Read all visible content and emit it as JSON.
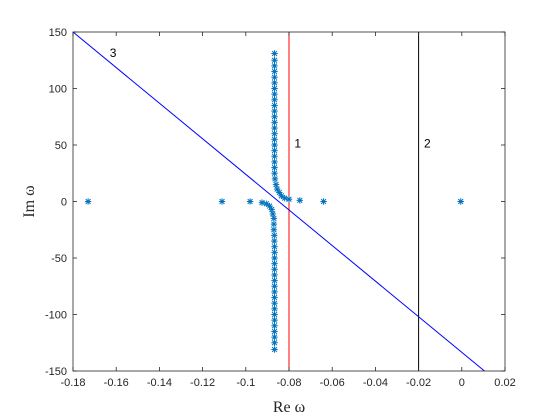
{
  "chart_data": {
    "type": "scatter",
    "title": "",
    "xlabel": "Re ω",
    "ylabel": "Im ω",
    "xlim": [
      -0.18,
      0.02
    ],
    "ylim": [
      -150,
      150
    ],
    "grid": false,
    "x_ticks": [
      -0.18,
      -0.16,
      -0.14,
      -0.12,
      -0.1,
      -0.08,
      -0.06,
      -0.04,
      -0.02,
      0,
      0.02
    ],
    "x_tick_labels": [
      "-0.18",
      "-0.16",
      "-0.14",
      "-0.12",
      "-0.1",
      "-0.08",
      "-0.06",
      "-0.04",
      "-0.02",
      "0",
      "0.02"
    ],
    "y_ticks": [
      -150,
      -100,
      -50,
      0,
      50,
      100,
      150
    ],
    "y_tick_labels": [
      "-150",
      "-100",
      "-50",
      "0",
      "50",
      "100",
      "150"
    ],
    "marker_color": "#0072BD",
    "points": [
      [
        -0.173,
        0
      ],
      [
        -0.111,
        0
      ],
      [
        -0.098,
        0
      ],
      [
        -0.064,
        0
      ],
      [
        -0.075,
        1
      ],
      [
        -0.0005,
        0
      ],
      [
        -0.0925,
        -1
      ],
      [
        -0.0905,
        -2
      ],
      [
        -0.089,
        -4
      ],
      [
        -0.088,
        -7
      ],
      [
        -0.0875,
        -11
      ],
      [
        -0.087,
        -15
      ],
      [
        -0.087,
        -20
      ],
      [
        -0.087,
        -25
      ],
      [
        -0.0868,
        -30
      ],
      [
        -0.0868,
        -35
      ],
      [
        -0.0867,
        -40
      ],
      [
        -0.0867,
        -45
      ],
      [
        -0.0867,
        -50
      ],
      [
        -0.0867,
        -55
      ],
      [
        -0.0867,
        -60
      ],
      [
        -0.0867,
        -65
      ],
      [
        -0.0867,
        -70
      ],
      [
        -0.0867,
        -75
      ],
      [
        -0.0867,
        -80
      ],
      [
        -0.0867,
        -85
      ],
      [
        -0.0867,
        -90
      ],
      [
        -0.0867,
        -95
      ],
      [
        -0.0867,
        -100
      ],
      [
        -0.0867,
        -105
      ],
      [
        -0.0867,
        -110
      ],
      [
        -0.0867,
        -115
      ],
      [
        -0.0867,
        -120
      ],
      [
        -0.0867,
        -125
      ],
      [
        -0.0867,
        -131
      ],
      [
        -0.08,
        2
      ],
      [
        -0.082,
        3
      ],
      [
        -0.0835,
        5
      ],
      [
        -0.0845,
        8
      ],
      [
        -0.0855,
        11
      ],
      [
        -0.086,
        15
      ],
      [
        -0.0865,
        20
      ],
      [
        -0.0867,
        25
      ],
      [
        -0.0867,
        30
      ],
      [
        -0.0867,
        35
      ],
      [
        -0.0867,
        40
      ],
      [
        -0.0867,
        45
      ],
      [
        -0.0867,
        50
      ],
      [
        -0.0867,
        55
      ],
      [
        -0.0867,
        60
      ],
      [
        -0.0867,
        65
      ],
      [
        -0.0867,
        70
      ],
      [
        -0.0867,
        75
      ],
      [
        -0.0867,
        80
      ],
      [
        -0.0867,
        85
      ],
      [
        -0.0867,
        90
      ],
      [
        -0.0867,
        95
      ],
      [
        -0.0867,
        100
      ],
      [
        -0.0867,
        105
      ],
      [
        -0.0867,
        110
      ],
      [
        -0.0867,
        115
      ],
      [
        -0.0867,
        120
      ],
      [
        -0.0867,
        125
      ],
      [
        -0.0867,
        131
      ]
    ],
    "lines": [
      {
        "label": "1",
        "color": "#FF0000",
        "x1": -0.08,
        "y1": -150,
        "x2": -0.08,
        "y2": 150,
        "label_x": -0.0775,
        "label_y": 48
      },
      {
        "label": "2",
        "color": "#000000",
        "x1": -0.02,
        "y1": -150,
        "x2": -0.02,
        "y2": 150,
        "label_x": -0.0175,
        "label_y": 48
      },
      {
        "label": "3",
        "color": "#0000FF",
        "x1": -0.18,
        "y1": 150,
        "x2": 0.0105,
        "y2": -150,
        "label_x": -0.163,
        "label_y": 128
      }
    ]
  }
}
